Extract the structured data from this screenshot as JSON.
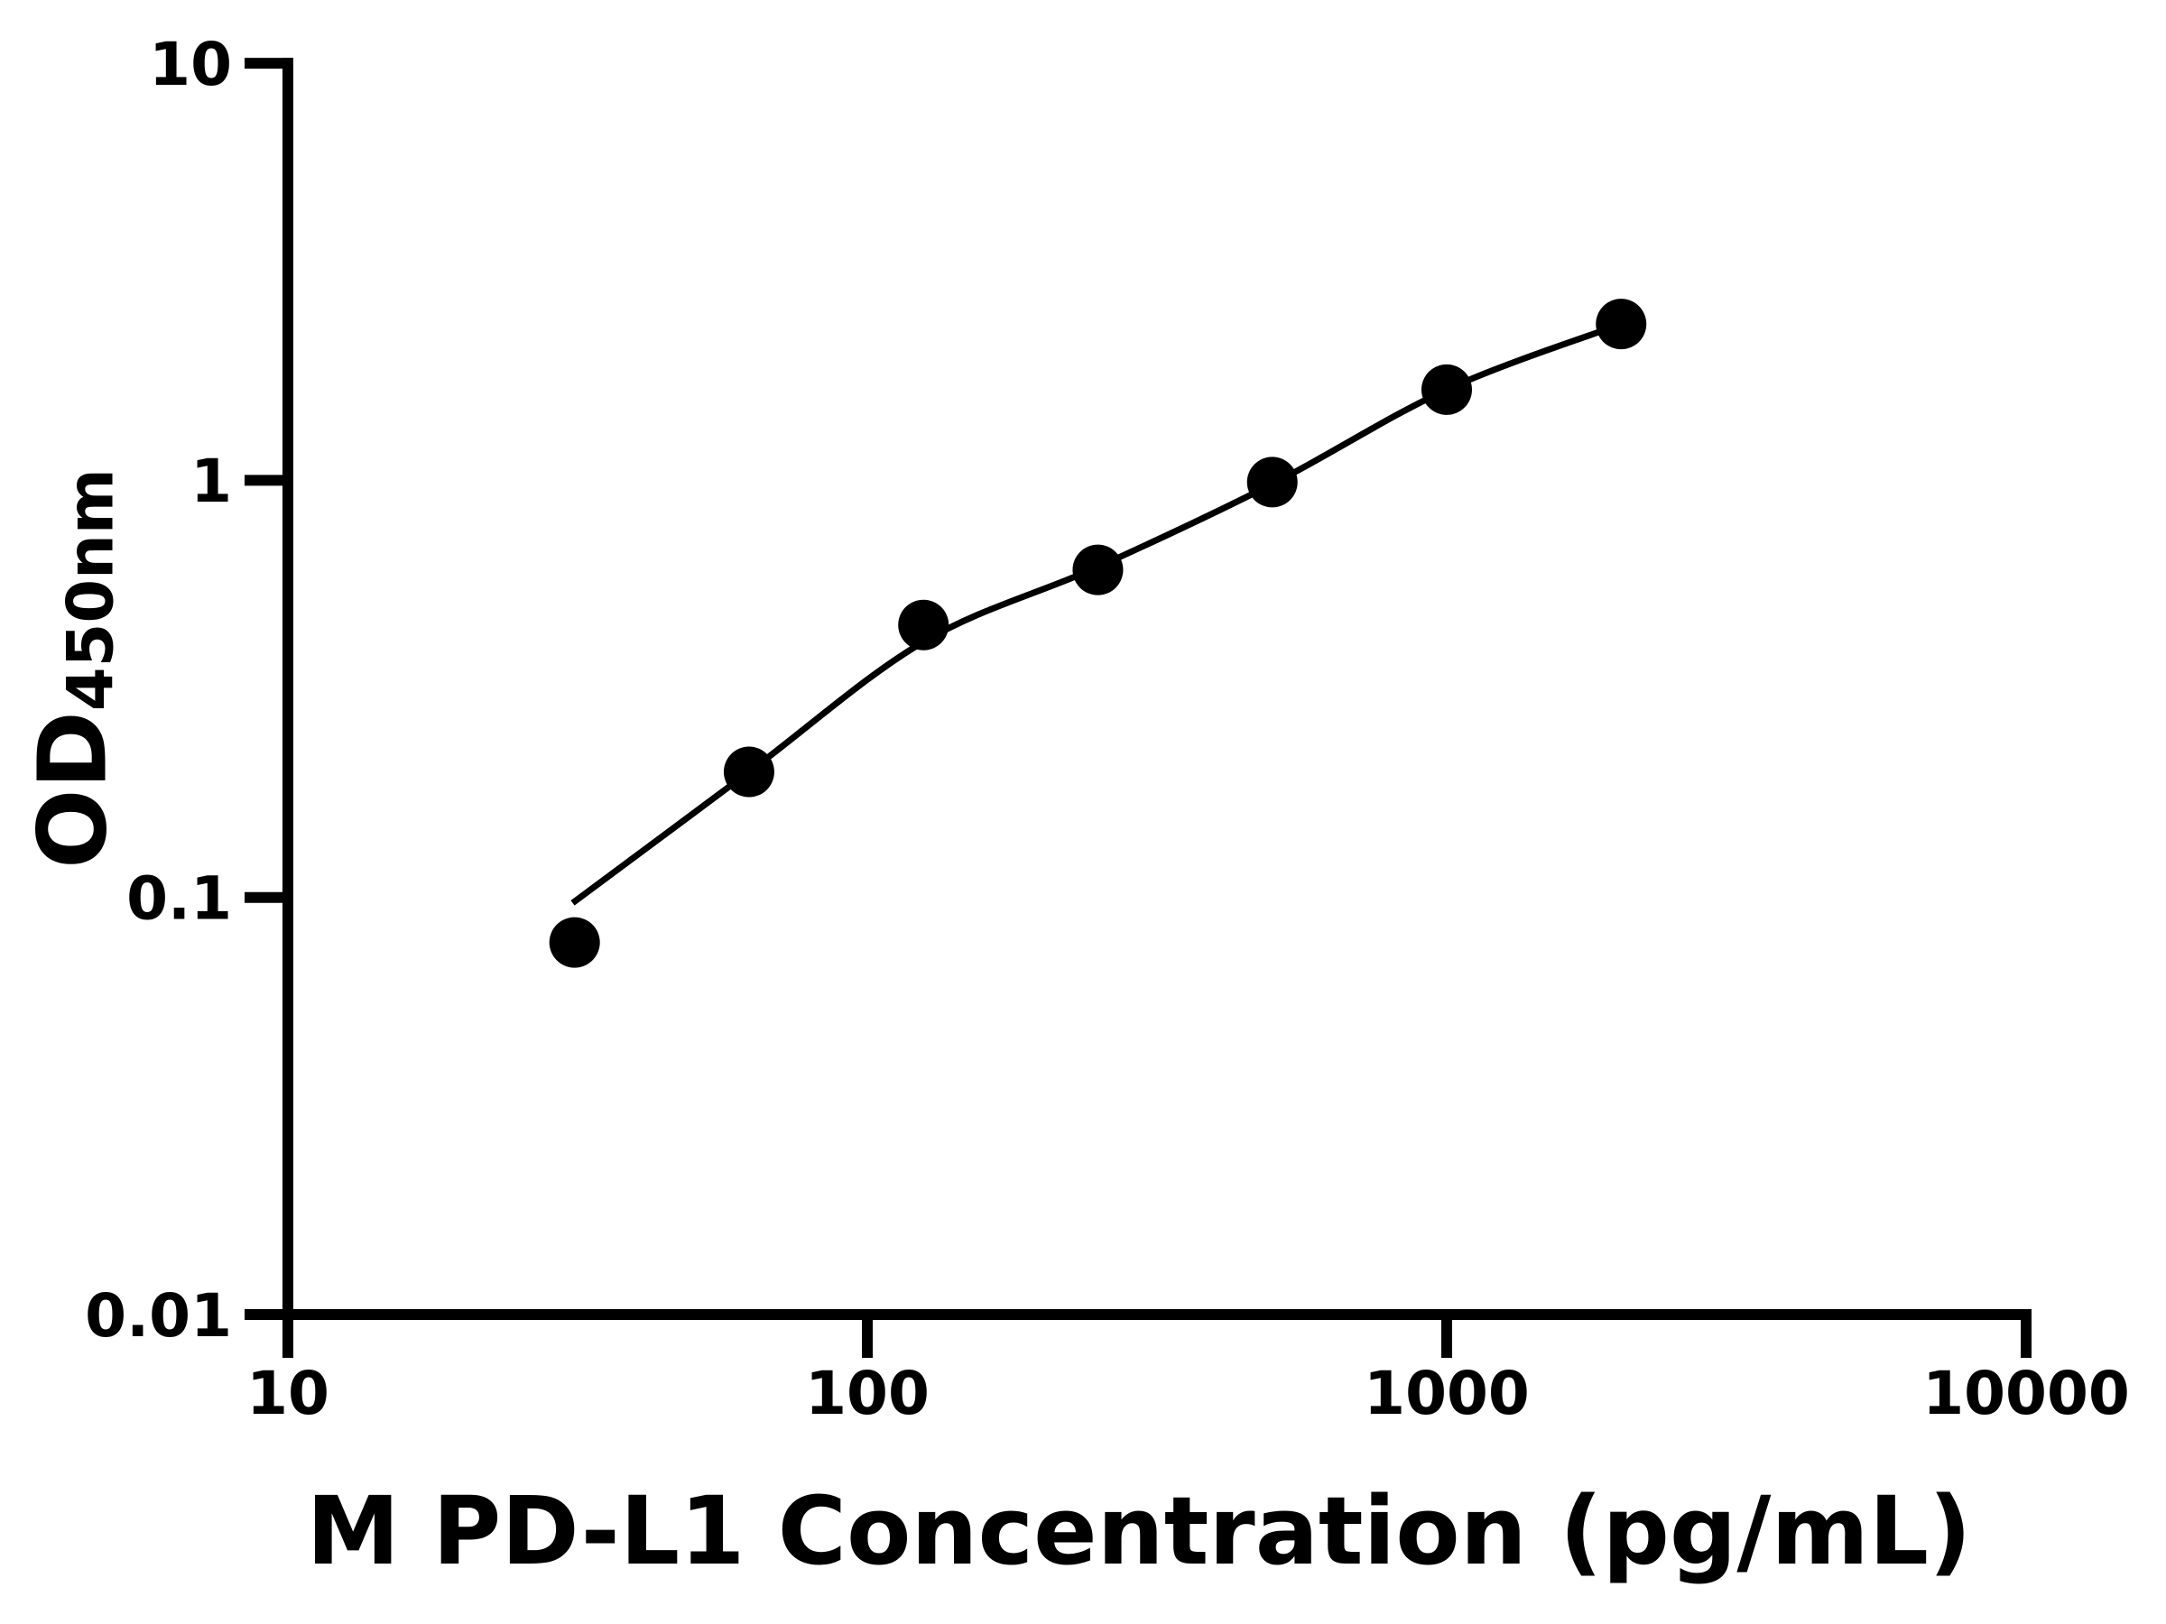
{
  "colors": {
    "foreground": "#000000",
    "background": "#ffffff"
  },
  "chart_data": {
    "type": "scatter",
    "title": "",
    "xlabel": "M PD-L1 Concentration (pg/mL)",
    "ylabel": "OD450nm",
    "ylabel_base": "OD",
    "ylabel_sub": "450nm",
    "x_scale": "log",
    "y_scale": "log",
    "xlim": [
      10,
      10000
    ],
    "ylim": [
      0.01,
      10
    ],
    "grid": false,
    "legend_position": "none",
    "x_ticks": [
      {
        "value": 10,
        "label": "10"
      },
      {
        "value": 100,
        "label": "100"
      },
      {
        "value": 1000,
        "label": "1000"
      },
      {
        "value": 10000,
        "label": "10000"
      }
    ],
    "y_ticks": [
      {
        "value": 0.01,
        "label": "0.01"
      },
      {
        "value": 0.1,
        "label": "0.1"
      },
      {
        "value": 1,
        "label": "1"
      },
      {
        "value": 10,
        "label": "10"
      }
    ],
    "series": [
      {
        "name": "standard-points",
        "marker": "circle",
        "color": "#000000",
        "x": [
          31.25,
          62.5,
          125,
          250,
          500,
          1000,
          2000
        ],
        "y": [
          0.078,
          0.2,
          0.45,
          0.61,
          0.99,
          1.65,
          2.37
        ]
      }
    ],
    "fit_curve": {
      "name": "fitted-standard-curve",
      "color": "#000000",
      "x": [
        31,
        62.5,
        125,
        250,
        500,
        1000,
        2000
      ],
      "y": [
        0.097,
        0.2,
        0.41,
        0.62,
        0.98,
        1.65,
        2.37
      ]
    }
  }
}
